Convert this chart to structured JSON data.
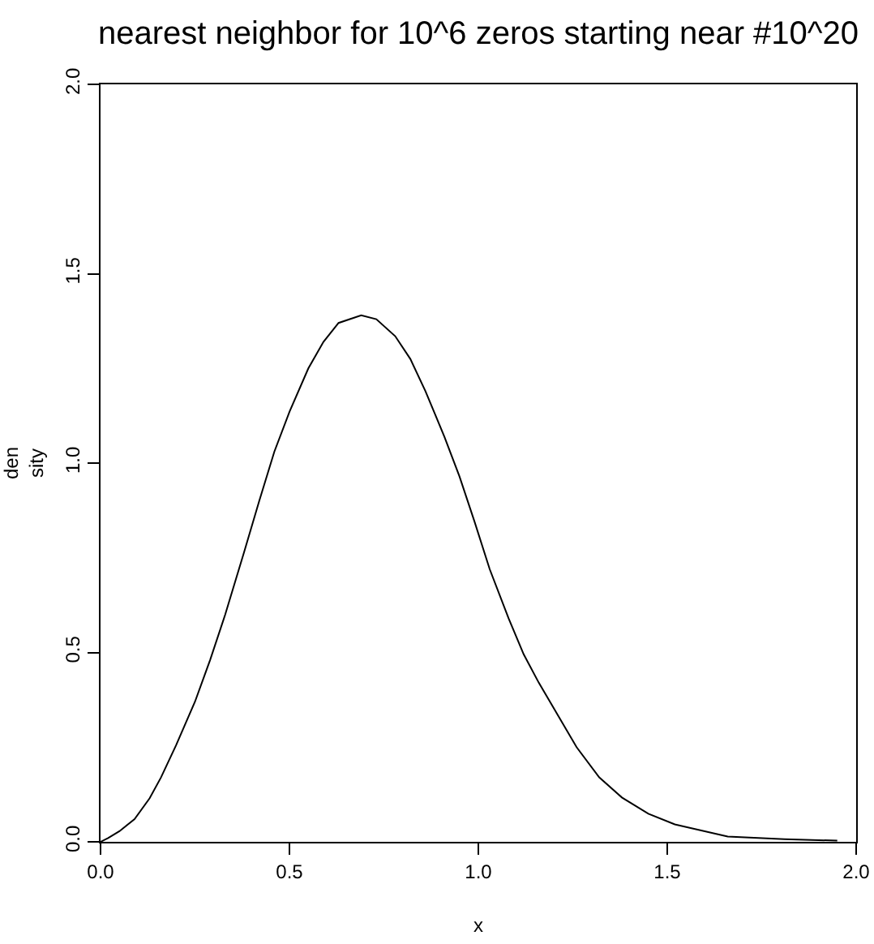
{
  "chart_data": {
    "type": "line",
    "title": "nearest neighbor for 10^6 zeros starting near #10^20",
    "xlabel": "x",
    "ylabel": "den\nsity",
    "x": [
      0.0,
      0.02,
      0.05,
      0.09,
      0.13,
      0.16,
      0.2,
      0.25,
      0.29,
      0.33,
      0.38,
      0.42,
      0.46,
      0.5,
      0.55,
      0.59,
      0.63,
      0.69,
      0.73,
      0.78,
      0.82,
      0.86,
      0.91,
      0.95,
      0.99,
      1.03,
      1.08,
      1.12,
      1.16,
      1.21,
      1.26,
      1.32,
      1.38,
      1.45,
      1.52,
      1.66,
      1.81,
      1.95
    ],
    "series": [
      {
        "color": "#000000",
        "line_style": "solid",
        "values": [
          0.0,
          0.01,
          0.028,
          0.06,
          0.115,
          0.17,
          0.255,
          0.37,
          0.48,
          0.6,
          0.765,
          0.9,
          1.03,
          1.135,
          1.25,
          1.32,
          1.37,
          1.39,
          1.38,
          1.335,
          1.275,
          1.19,
          1.07,
          0.965,
          0.845,
          0.72,
          0.59,
          0.495,
          0.42,
          0.335,
          0.25,
          0.17,
          0.117,
          0.074,
          0.046,
          0.014,
          0.007,
          0.003
        ]
      }
    ],
    "xlim": [
      0,
      2
    ],
    "ylim": [
      0,
      2
    ],
    "xticks": [
      {
        "value": 0,
        "label": "0.0"
      },
      0.5,
      {
        "value": 1,
        "label": "1.0"
      },
      1.5,
      {
        "value": 2,
        "label": "2.0"
      }
    ],
    "yticks": [
      {
        "value": 0,
        "label": "0.0"
      },
      0.5,
      {
        "value": 1,
        "label": "1.0"
      },
      1.5,
      {
        "value": 2,
        "label": "2.0"
      }
    ]
  }
}
